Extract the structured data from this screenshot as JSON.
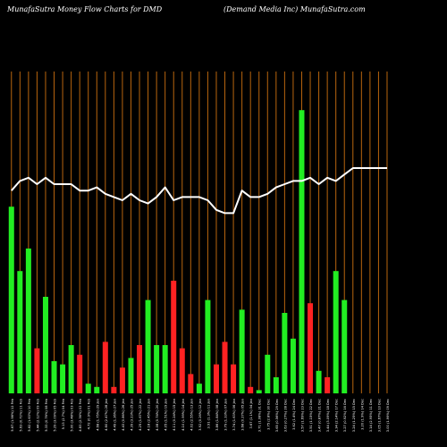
{
  "header": {
    "left": "MunafaSutra  Money Flow  Charts for DMD",
    "right": "(Demand Media  Inc) MunafaSutra.com"
  },
  "chart_data": {
    "type": "bar",
    "title": "MunafaSutra  Money Flow  Charts for DMD",
    "subtitle": "(Demand Media  Inc) MunafaSutra.com",
    "categories": [
      "Fri 12 Feb 2016",
      "Thu 11 Feb 2016",
      "Wed 10 Feb 2016",
      "Tue 09 Feb 2016",
      "Mon 08 Feb 2016",
      "Fri 05 Feb 2016",
      "Thu 04 Feb 2016",
      "Wed 03 Feb 2016",
      "Tue 02 Feb 2016",
      "Mon 01 Feb 2016",
      "Fri 29 Jan 2016",
      "Thu 28 Jan 2016",
      "Wed 27 Jan 2016",
      "Tue 26 Jan 2016",
      "Mon 25 Jan 2016",
      "Fri 22 Jan 2016",
      "Thu 21 Jan 2016",
      "Wed 20 Jan 2016",
      "Tue 19 Jan 2016",
      "Fri 15 Jan 2016",
      "Thu 14 Jan 2016",
      "Wed 13 Jan 2016",
      "Tue 12 Jan 2016",
      "Mon 11 Jan 2016",
      "Fri 08 Jan 2016",
      "Thu 07 Jan 2016",
      "Wed 06 Jan 2016",
      "Tue 05 Jan 2016",
      "Mon 04 Jan 2016",
      "Thu 31 Dec 2015",
      "Wed 30 Dec 2015",
      "Tue 29 Dec 2015",
      "Mon 28 Dec 2015",
      "Thu 24 Dec 2015",
      "Wed 23 Dec 2015",
      "Tue 22 Dec 2015",
      "Mon 21 Dec 2015",
      "Fri 18 Dec 2015",
      "Thu 17 Dec 2015",
      "Wed 16 Dec 2015",
      "Tue 15 Dec 2015",
      "Mon 14 Dec 2015",
      "Fri 11 Dec 2015",
      "Thu 10 Dec 2015",
      "Wed 09 Dec 2015"
    ],
    "tick_labels": [
      "5.67 (1.98%) 12 Feb",
      "5.63 (0.72%) 11 Feb",
      "5.62 (1.63%) 10 Feb",
      "5.44 (2.12%) 09 Feb",
      "5.33 (0.76%) 08 Feb",
      "5.29 (3.09%) 05 Feb",
      "5.13 (2.7%) 04 Feb",
      "5.00 (3.48%) 03 Feb",
      "4.83 (2.36%) 02 Feb",
      "4.72 (0.9%) 01 Feb",
      "4.68 (1.75%) 29 Jan",
      "4.60 (2.47%) 28 Jan",
      "4.49 (1.36%) 27 Jan",
      "4.43 (0.86%) 26 Jan",
      "4.39 (3.23%) 25 Jan",
      "4.25 (1.67%) 22 Jan",
      "4.18 (2.45%) 21 Jan",
      "4.08 (0.74%) 20 Jan",
      "4.05 (1.51%) 19 Jan",
      "4.11 (0.24%) 15 Jan",
      "4.10 (1.99%) 14 Jan",
      "4.02 (2.55%) 13 Jan",
      "3.92 (0.26%) 12 Jan",
      "3.91 (1.3%) 11 Jan",
      "3.86 (1.84%) 08 Jan",
      "3.79 (1.33%) 07 Jan",
      "3.74 (1.63%) 06 Jan",
      "3.68 (0.27%) 05 Jan",
      "3.67 (1.1%) 04 Jan",
      "3.71 (1.08%) 31 Dec",
      "3.75 (2.8%) 30 Dec",
      "3.65 (0.56%) 29 Dec",
      "3.63 (0.27%) 28 Dec",
      "3.62 (1.4%) 24 Dec",
      "3.57 (1.69%) 23 Dec",
      "3.51 (1.15%) 22 Dec",
      "3.47 (0.87%) 21 Dec",
      "3.44 (3.09%) 18 Dec",
      "3.34 (2.14%) 17 Dec",
      "3.27 (0.92%) 16 Dec",
      "3.24 (1.25%) 15 Dec",
      "3.20 (1.9%) 14 Dec",
      "3.14 (2.95%) 11 Dec",
      "3.05 (1.67%) 10 Dec",
      "3.00 (1.99%) 09 Dec"
    ],
    "bar_values": [
      58,
      38,
      45,
      14,
      30,
      10,
      9,
      15,
      12,
      3,
      2,
      16,
      2,
      8,
      11,
      15,
      29,
      15,
      15,
      35,
      14,
      6,
      3,
      29,
      9,
      16,
      9,
      26,
      2,
      1,
      12,
      5,
      25,
      17,
      88,
      28,
      7,
      5,
      38,
      29,
      0,
      0,
      0,
      0,
      0
    ],
    "bar_colors": [
      "green",
      "green",
      "green",
      "red",
      "green",
      "green",
      "green",
      "green",
      "red",
      "green",
      "green",
      "red",
      "red",
      "red",
      "green",
      "red",
      "green",
      "green",
      "green",
      "red",
      "red",
      "red",
      "green",
      "green",
      "red",
      "red",
      "red",
      "green",
      "red",
      "green",
      "green",
      "green",
      "green",
      "green",
      "green",
      "red",
      "green",
      "red",
      "green",
      "green",
      "green",
      "green",
      "green",
      "green",
      "green"
    ],
    "line_values": [
      63,
      66,
      67,
      65,
      67,
      65,
      65,
      65,
      63,
      63,
      64,
      62,
      61,
      60,
      62,
      60,
      59,
      61,
      64,
      60,
      61,
      61,
      61,
      60,
      57,
      56,
      56,
      63,
      61,
      61,
      62,
      64,
      65,
      66,
      66,
      67,
      65,
      67,
      66,
      68,
      70,
      70,
      70,
      70,
      70
    ],
    "ylim": [
      0,
      100
    ],
    "xlabel": "",
    "ylabel": "",
    "grid": "vertical",
    "colors": {
      "background": "#000000",
      "grid": "#b8650e",
      "up": "#22ee22",
      "down": "#ff2222",
      "line": "#ffffff",
      "text": "#ffffff"
    }
  }
}
